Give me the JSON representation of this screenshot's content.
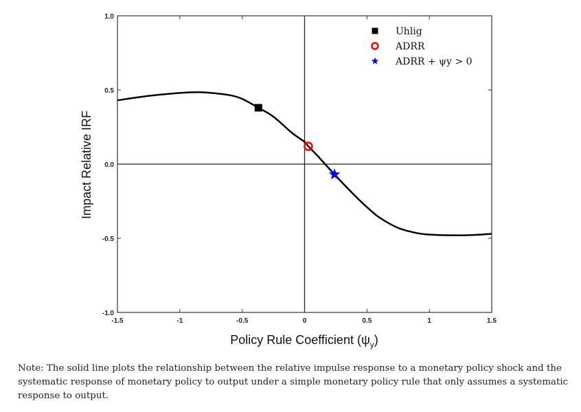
{
  "chart_data": {
    "type": "line",
    "title": "",
    "xlabel": "Policy Rule Coefficient (ψ",
    "xlabel_sub": "y",
    "xlabel_close": ")",
    "ylabel": "Impact Relative IRF",
    "xlim": [
      -1.5,
      1.5
    ],
    "ylim": [
      -1.0,
      1.0
    ],
    "xticks": [
      -1.5,
      -1,
      -0.5,
      0,
      0.5,
      1,
      1.5
    ],
    "xtick_labels": [
      "-1.5",
      "-1",
      "-0.5",
      "0",
      "0.5",
      "1",
      "1.5"
    ],
    "yticks": [
      1.0,
      0.5,
      0.0,
      -0.5,
      -1.0
    ],
    "ytick_labels": [
      "1.0",
      "0.5",
      "0.0",
      "-0.5",
      "-1.0"
    ],
    "grid": false,
    "legend_position": "top-right",
    "series": [
      {
        "name": "curve",
        "x": [
          -1.5,
          -1.25,
          -1.0,
          -0.85,
          -0.75,
          -0.6,
          -0.5,
          -0.37,
          -0.25,
          -0.1,
          0,
          0.03,
          0.1,
          0.24,
          0.4,
          0.5,
          0.6,
          0.75,
          0.9,
          1.0,
          1.2,
          1.35,
          1.5
        ],
        "y": [
          0.43,
          0.46,
          0.48,
          0.485,
          0.48,
          0.465,
          0.44,
          0.38,
          0.32,
          0.21,
          0.15,
          0.12,
          0.06,
          -0.07,
          -0.21,
          -0.29,
          -0.36,
          -0.43,
          -0.465,
          -0.475,
          -0.48,
          -0.478,
          -0.47
        ],
        "color": "#000000"
      }
    ],
    "markers": [
      {
        "name": "Uhlig",
        "x": -0.37,
        "y": 0.38,
        "shape": "square",
        "color": "#000000"
      },
      {
        "name": "ADRR",
        "x": 0.03,
        "y": 0.12,
        "shape": "circle",
        "color": "#ff0000"
      },
      {
        "name": "ADRR + ψ_y > 0",
        "x": 0.24,
        "y": -0.07,
        "shape": "star",
        "color": "#0000ff"
      }
    ],
    "legend": [
      "Uhlig",
      "ADRR",
      "ADRR + ψy > 0"
    ]
  },
  "note": "Note: The solid line plots the relationship between the relative impulse response to a monetary policy shock and the systematic response of monetary policy to output under a simple monetary policy rule that only assumes a systematic response to output."
}
